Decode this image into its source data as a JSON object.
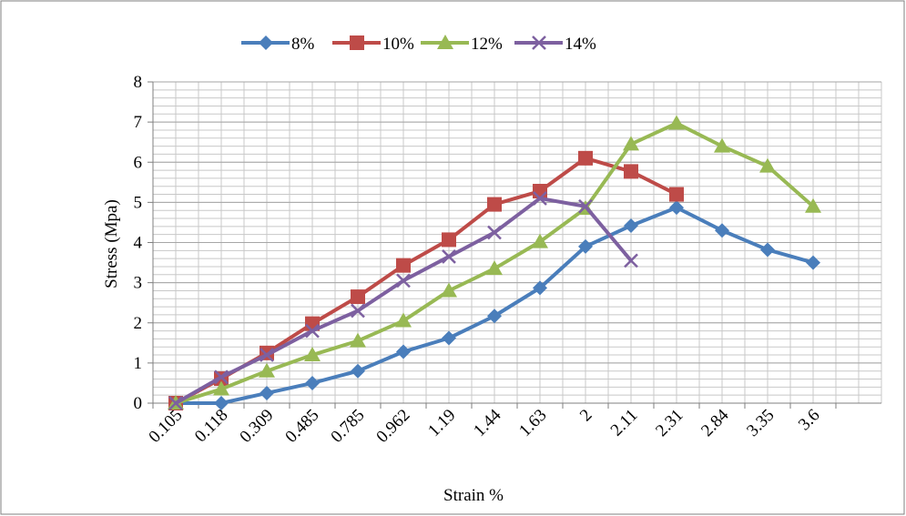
{
  "chart_data": {
    "type": "line",
    "x_label": "Strain %",
    "y_label": "Stress (Mpa)",
    "categories": [
      "0.105",
      "0.118",
      "0.309",
      "0.485",
      "0.785",
      "0.962",
      "1.19",
      "1.44",
      "1.63",
      "2",
      "2.11",
      "2.31",
      "2.84",
      "3.35",
      "3.6",
      null
    ],
    "series": [
      {
        "name": "8%",
        "color": "#4a7ebb",
        "marker": "diamond",
        "values": [
          0,
          0,
          0.25,
          0.5,
          0.8,
          1.28,
          1.62,
          2.17,
          2.87,
          3.9,
          4.42,
          4.87,
          4.3,
          3.82,
          3.5,
          null
        ]
      },
      {
        "name": "10%",
        "color": "#be4b48",
        "marker": "square",
        "values": [
          0,
          0.61,
          1.25,
          1.98,
          2.65,
          3.43,
          4.07,
          4.95,
          5.28,
          6.1,
          5.77,
          5.2,
          null,
          null,
          null,
          null
        ]
      },
      {
        "name": "12%",
        "color": "#98b954",
        "marker": "triangle",
        "values": [
          0,
          0.35,
          0.8,
          1.2,
          1.55,
          2.05,
          2.8,
          3.35,
          4.02,
          4.85,
          6.45,
          6.97,
          6.4,
          5.9,
          4.9,
          null
        ]
      },
      {
        "name": "14%",
        "color": "#7d60a0",
        "marker": "x",
        "values": [
          0,
          0.65,
          1.2,
          1.8,
          2.3,
          3.05,
          3.65,
          4.25,
          5.1,
          4.9,
          3.55,
          null,
          null,
          null,
          null,
          null
        ]
      }
    ],
    "ylim": [
      0,
      8
    ],
    "yticks": [
      0,
      1,
      2,
      3,
      4,
      5,
      6,
      7,
      8
    ],
    "grid": true,
    "legend": "top"
  }
}
